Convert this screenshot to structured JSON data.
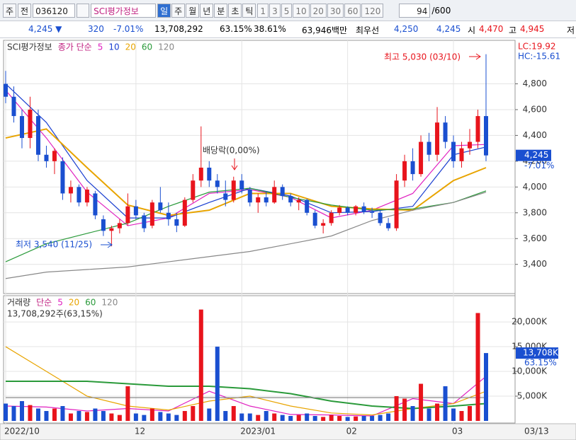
{
  "toolbar": {
    "market": "주",
    "mode": "전",
    "code": "036120",
    "name": "SCI평가정보",
    "periods": [
      "일",
      "주",
      "월",
      "년",
      "분",
      "초",
      "틱"
    ],
    "minutes": [
      "1",
      "3",
      "5",
      "10",
      "20",
      "30",
      "60",
      "120"
    ],
    "count": "94",
    "max": "/600"
  },
  "info": {
    "price": "4,245 ▼",
    "change": "320",
    "rate": "-7.01%",
    "volume": "13,708,292",
    "vol_ratio": "63.15%",
    "turnover": "38.61%",
    "amount": "63,946백만",
    "best_label": "최우선",
    "ask": "4,250",
    "bid": "4,245",
    "open_label": "시",
    "open": "4,470",
    "high_label": "고",
    "high": "4,945",
    "low_label": "저"
  },
  "chart_data": [
    {
      "type": "candlestick",
      "legend": [
        "SCI평가정보",
        "종가 단순"
      ],
      "ma_series": [
        {
          "name": "5",
          "color": "#e020c0",
          "x": [
            0,
            5,
            10,
            15,
            20,
            25,
            30,
            35,
            40,
            45,
            50,
            55,
            59
          ],
          "values": [
            4750,
            4380,
            3960,
            3700,
            3760,
            3950,
            3980,
            3920,
            3760,
            3820,
            3950,
            4320,
            4330
          ]
        },
        {
          "name": "10",
          "color": "#1a3fd0",
          "x": [
            0,
            5,
            10,
            15,
            20,
            25,
            30,
            35,
            40,
            45,
            50,
            55,
            59
          ],
          "values": [
            4800,
            4500,
            4050,
            3760,
            3760,
            3880,
            3990,
            3930,
            3800,
            3810,
            3850,
            4250,
            4310
          ]
        },
        {
          "name": "20",
          "color": "#e8a400",
          "x": [
            0,
            5,
            10,
            15,
            20,
            25,
            30,
            35,
            40,
            45,
            50,
            55,
            59
          ],
          "values": [
            4380,
            4450,
            4150,
            3860,
            3780,
            3820,
            3950,
            3950,
            3850,
            3830,
            3820,
            4050,
            4150
          ]
        },
        {
          "name": "60",
          "color": "#2a9a3a",
          "x": [
            0,
            5,
            10,
            15,
            20,
            25,
            30,
            35,
            40,
            45,
            50,
            55,
            59
          ],
          "values": [
            3420,
            3560,
            3640,
            3720,
            3850,
            3960,
            3990,
            3920,
            3860,
            3820,
            3830,
            3880,
            3970
          ]
        },
        {
          "name": "120",
          "color": "#888888",
          "x": [
            0,
            5,
            10,
            15,
            20,
            25,
            30,
            35,
            40,
            45,
            50,
            55,
            59
          ],
          "values": [
            3290,
            3340,
            3360,
            3380,
            3420,
            3460,
            3500,
            3560,
            3620,
            3740,
            3820,
            3880,
            3960
          ]
        }
      ],
      "categories": [
        "2022/10",
        null,
        null,
        null,
        null,
        null,
        null,
        null,
        null,
        null,
        null,
        null,
        null,
        null,
        null,
        null,
        "12",
        null,
        null,
        null,
        null,
        null,
        null,
        null,
        null,
        null,
        null,
        null,
        null,
        "2023/01",
        null,
        null,
        null,
        null,
        null,
        null,
        null,
        null,
        null,
        null,
        null,
        null,
        "02",
        null,
        null,
        null,
        null,
        null,
        null,
        null,
        null,
        null,
        null,
        null,
        null,
        "03",
        null,
        null,
        null,
        null
      ],
      "x_end_label": "03/13",
      "ohlc": [
        [
          4800,
          4900,
          4650,
          4700
        ],
        [
          4700,
          4780,
          4500,
          4550
        ],
        [
          4550,
          4600,
          4300,
          4380
        ],
        [
          4380,
          4700,
          4300,
          4600
        ],
        [
          4550,
          4600,
          4200,
          4250
        ],
        [
          4250,
          4320,
          4150,
          4200
        ],
        [
          4200,
          4300,
          4100,
          4280
        ],
        [
          4200,
          4230,
          3900,
          3950
        ],
        [
          3950,
          4050,
          3880,
          4000
        ],
        [
          4000,
          4020,
          3850,
          3880
        ],
        [
          3880,
          4000,
          3850,
          3980
        ],
        [
          3950,
          3970,
          3750,
          3780
        ],
        [
          3750,
          3780,
          3620,
          3660
        ],
        [
          3660,
          3700,
          3540,
          3680
        ],
        [
          3680,
          3750,
          3640,
          3720
        ],
        [
          3720,
          3950,
          3700,
          3850
        ],
        [
          3850,
          3900,
          3750,
          3780
        ],
        [
          3780,
          3800,
          3650,
          3680
        ],
        [
          3700,
          3900,
          3680,
          3880
        ],
        [
          3880,
          4000,
          3800,
          3820
        ],
        [
          3800,
          3880,
          3700,
          3750
        ],
        [
          3750,
          3800,
          3650,
          3700
        ],
        [
          3700,
          3920,
          3690,
          3900
        ],
        [
          3900,
          4100,
          3880,
          4050
        ],
        [
          4050,
          4470,
          4000,
          4150
        ],
        [
          4150,
          4200,
          4000,
          4050
        ],
        [
          4050,
          4100,
          3950,
          4000
        ],
        [
          3950,
          4050,
          3850,
          3900
        ],
        [
          3900,
          4080,
          3880,
          4050
        ],
        [
          4050,
          4100,
          3950,
          3980
        ],
        [
          3980,
          4000,
          3850,
          3880
        ],
        [
          3880,
          3950,
          3800,
          3920
        ],
        [
          3920,
          3960,
          3850,
          3880
        ],
        [
          3880,
          4050,
          3870,
          4000
        ],
        [
          4000,
          4020,
          3900,
          3930
        ],
        [
          3930,
          3950,
          3850,
          3880
        ],
        [
          3880,
          3920,
          3820,
          3900
        ],
        [
          3900,
          3910,
          3780,
          3800
        ],
        [
          3800,
          3820,
          3680,
          3700
        ],
        [
          3700,
          3750,
          3640,
          3720
        ],
        [
          3720,
          3820,
          3700,
          3800
        ],
        [
          3800,
          3860,
          3780,
          3840
        ],
        [
          3840,
          3850,
          3780,
          3800
        ],
        [
          3800,
          3860,
          3780,
          3850
        ],
        [
          3850,
          3880,
          3790,
          3810
        ],
        [
          3810,
          3840,
          3760,
          3800
        ],
        [
          3800,
          3820,
          3700,
          3720
        ],
        [
          3720,
          3760,
          3660,
          3680
        ],
        [
          3680,
          4100,
          3660,
          4050
        ],
        [
          4050,
          4250,
          4000,
          4200
        ],
        [
          4200,
          4300,
          4050,
          4100
        ],
        [
          4100,
          4400,
          4080,
          4350
        ],
        [
          4350,
          4420,
          4200,
          4250
        ],
        [
          4250,
          4620,
          4200,
          4500
        ],
        [
          4500,
          4550,
          4300,
          4350
        ],
        [
          4350,
          4400,
          4150,
          4200
        ],
        [
          4200,
          4350,
          4150,
          4300
        ],
        [
          4300,
          4450,
          4250,
          4350
        ],
        [
          4350,
          4600,
          4300,
          4550
        ],
        [
          4550,
          5030,
          4200,
          4245
        ]
      ],
      "up_color": "#e8141c",
      "down_color": "#1a4fd0",
      "ylim": [
        3190,
        5110
      ],
      "yticks": [
        {
          "value": 3400,
          "label": "3,400"
        },
        {
          "value": 3600,
          "label": "3,600"
        },
        {
          "value": 3800,
          "label": "3,800"
        },
        {
          "value": 4000,
          "label": "4,000"
        },
        {
          "value": 4200,
          "label": "4,200"
        },
        {
          "value": 4400,
          "label": "4,400"
        },
        {
          "value": 4600,
          "label": "4,600"
        },
        {
          "value": 4800,
          "label": "4,800"
        }
      ],
      "annotations": {
        "high": "최고 5,030 (03/10)",
        "low": "최저 3,540 (11/25)",
        "dividend": "배당락(0,00%)",
        "lc": "LC:19.92",
        "hc": "HC:-15.61",
        "last": "4,245",
        "last_rate": "-7.01%"
      }
    },
    {
      "type": "bar",
      "legend": [
        "거래량",
        "단순"
      ],
      "summary": "13,708,292주(63,15%)",
      "values": [
        3500,
        3000,
        4000,
        3200,
        2500,
        2000,
        2500,
        3000,
        1500,
        2000,
        1800,
        2500,
        2000,
        1500,
        1200,
        7000,
        1500,
        1200,
        2500,
        1800,
        1500,
        1200,
        2000,
        3000,
        22500,
        2500,
        15000,
        2000,
        3000,
        1500,
        1500,
        1200,
        2000,
        1500,
        1200,
        1000,
        1200,
        1500,
        1000,
        800,
        1200,
        1000,
        800,
        900,
        1000,
        1000,
        1200,
        1500,
        5000,
        4500,
        3000,
        7500,
        2500,
        3500,
        7000,
        2500,
        2000,
        3000,
        21800,
        13708
      ],
      "ma_series": [
        {
          "name": "5",
          "color": "#e020c0",
          "x": [
            0,
            5,
            10,
            15,
            20,
            25,
            30,
            35,
            40,
            45,
            50,
            55,
            59
          ],
          "values": [
            3000,
            2800,
            2000,
            2500,
            2000,
            6000,
            3000,
            1300,
            1200,
            1000,
            4500,
            3500,
            9000
          ]
        },
        {
          "name": "20",
          "color": "#e8a400",
          "x": [
            0,
            5,
            10,
            15,
            20,
            25,
            30,
            35,
            40,
            45,
            50,
            55,
            59
          ],
          "values": [
            15000,
            10000,
            5000,
            3000,
            2200,
            4000,
            5000,
            3000,
            1600,
            1200,
            2500,
            3500,
            6000
          ]
        },
        {
          "name": "60",
          "color": "#2a9a3a",
          "x": [
            0,
            5,
            10,
            15,
            20,
            25,
            30,
            35,
            40,
            45,
            50,
            55,
            59
          ],
          "values": [
            8000,
            8000,
            8000,
            7500,
            7000,
            7000,
            6500,
            5500,
            4000,
            3000,
            2500,
            3000,
            3500
          ]
        },
        {
          "name": "120",
          "color": "#888888",
          "x": [
            0,
            59
          ],
          "values": [
            4700,
            4700
          ]
        }
      ],
      "ylim": [
        0,
        24300
      ],
      "yticks": [
        {
          "value": 5000,
          "label": "5,000K"
        },
        {
          "value": 10000,
          "label": "10,000K"
        },
        {
          "value": 15000,
          "label": "15,000K"
        },
        {
          "value": 20000,
          "label": "20,000K"
        }
      ],
      "last_label": "13,708K",
      "last_rate": "63.15%"
    }
  ]
}
